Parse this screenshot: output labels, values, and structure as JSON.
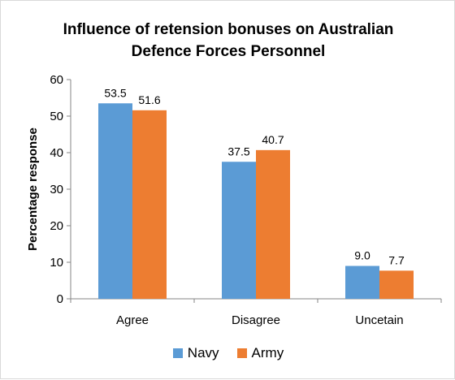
{
  "chart_data": {
    "type": "bar",
    "title_lines": [
      "Influence of retension bonuses on Australian",
      "Defence Forces Personnel"
    ],
    "ylabel": "Percentage response",
    "xlabel": "",
    "categories": [
      "Agree",
      "Disagree",
      "Uncetain"
    ],
    "series": [
      {
        "name": "Navy",
        "values": [
          53.5,
          37.5,
          9.0
        ],
        "labels": [
          "53.5",
          "37.5",
          "9.0"
        ],
        "color": "#5b9bd5"
      },
      {
        "name": "Army",
        "values": [
          51.6,
          40.7,
          7.7
        ],
        "labels": [
          "51.6",
          "40.7",
          "7.7"
        ],
        "color": "#ed7d31"
      }
    ],
    "ylim": [
      0,
      60
    ],
    "yticks": [
      0,
      10,
      20,
      30,
      40,
      50,
      60
    ],
    "grid": false,
    "legend_position": "bottom"
  }
}
